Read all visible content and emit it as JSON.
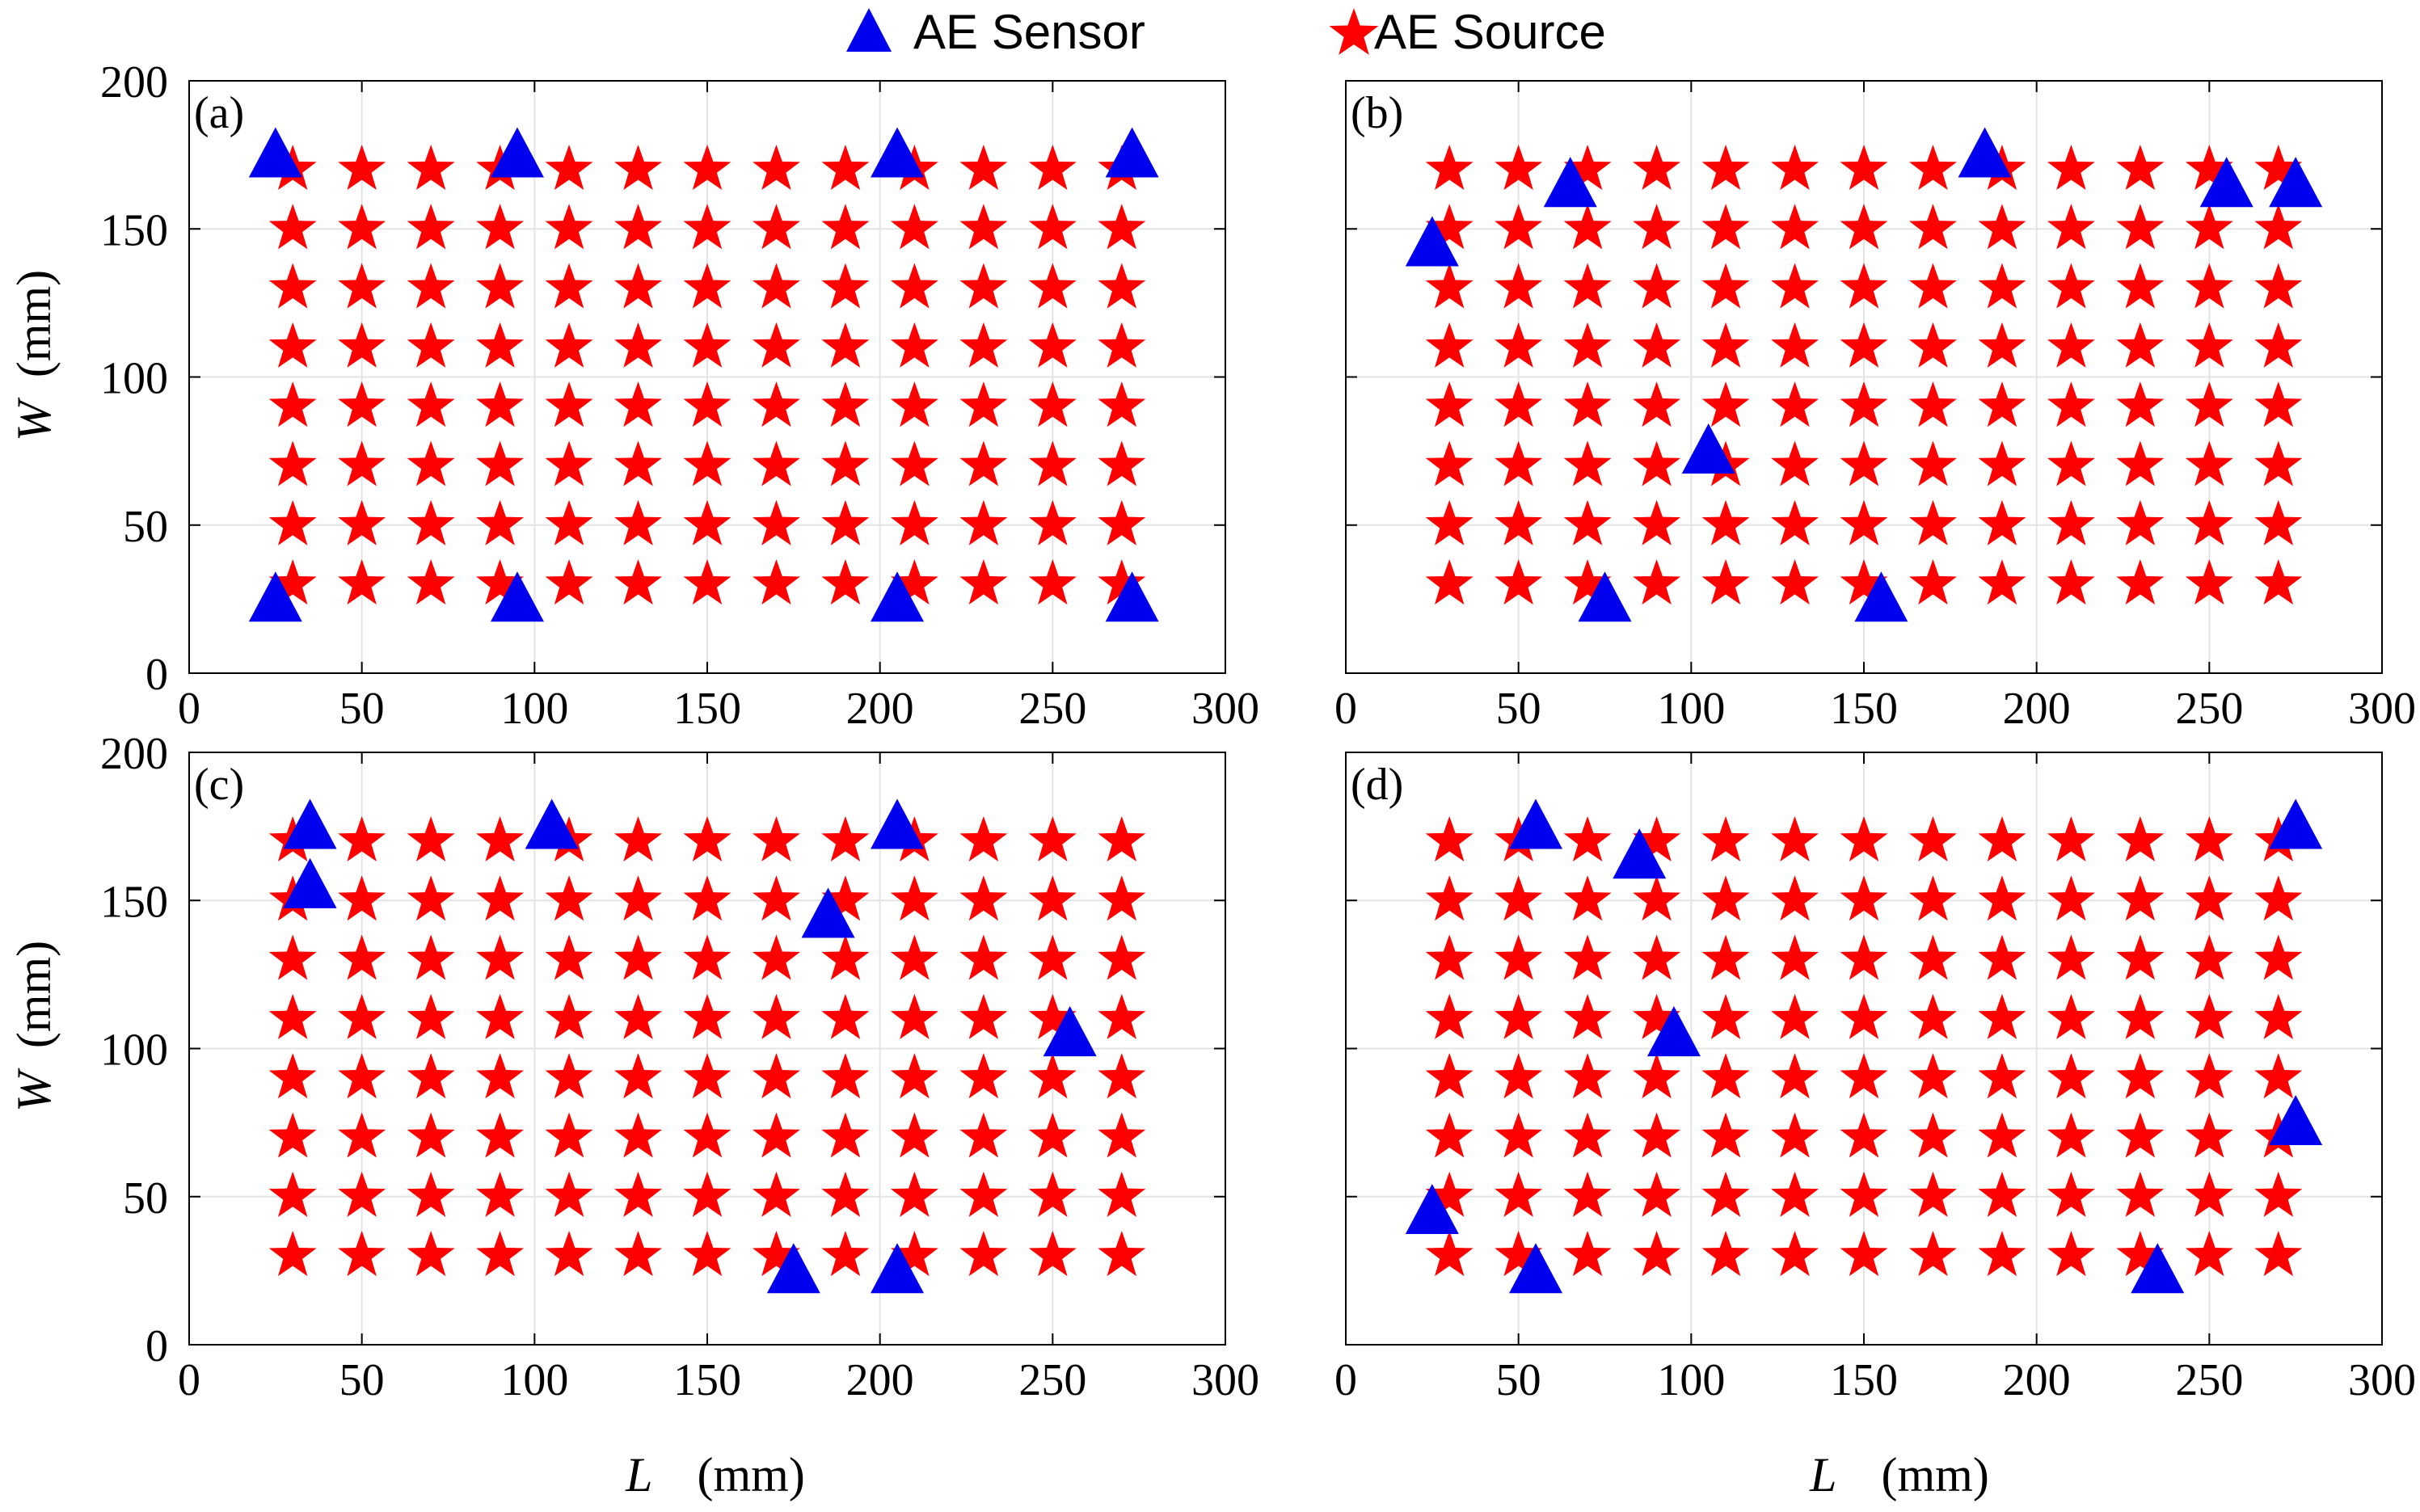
{
  "legend": {
    "sensor_label": "AE Sensor",
    "source_label": "AE Source"
  },
  "colors": {
    "sensor": "#0000ee",
    "source": "#ff0000",
    "grid": "#e4e4e4",
    "axes": "#000000"
  },
  "axis_text": {
    "x_var": "L",
    "x_unit": "(mm)",
    "y_var": "W",
    "y_unit": "(mm)"
  },
  "chart_data": [
    {
      "type": "scatter",
      "panel_label": "(a)",
      "xlim": [
        0,
        300
      ],
      "ylim": [
        0,
        200
      ],
      "x_ticks": [
        "0",
        "50",
        "100",
        "150",
        "200",
        "250",
        "300"
      ],
      "y_ticks": [
        "0",
        "50",
        "100",
        "150",
        "200"
      ],
      "grid": true,
      "source_x": [
        30,
        50,
        70,
        90,
        110,
        130,
        150,
        170,
        190,
        210,
        230,
        250,
        270
      ],
      "source_y": [
        30,
        50,
        70,
        90,
        110,
        130,
        150,
        170
      ],
      "sensors": [
        [
          25,
          175
        ],
        [
          95,
          175
        ],
        [
          205,
          175
        ],
        [
          273,
          175
        ],
        [
          25,
          25
        ],
        [
          95,
          25
        ],
        [
          205,
          25
        ],
        [
          273,
          25
        ]
      ]
    },
    {
      "type": "scatter",
      "panel_label": "(b)",
      "xlim": [
        0,
        300
      ],
      "ylim": [
        0,
        200
      ],
      "x_ticks": [
        "0",
        "50",
        "100",
        "150",
        "200",
        "250",
        "300"
      ],
      "y_ticks": [
        "0",
        "50",
        "100",
        "150",
        "200"
      ],
      "grid": true,
      "source_x": [
        30,
        50,
        70,
        90,
        110,
        130,
        150,
        170,
        190,
        210,
        230,
        250,
        270
      ],
      "source_y": [
        30,
        50,
        70,
        90,
        110,
        130,
        150,
        170
      ],
      "sensors": [
        [
          25,
          145
        ],
        [
          65,
          165
        ],
        [
          185,
          175
        ],
        [
          255,
          165
        ],
        [
          275,
          165
        ],
        [
          105,
          75
        ],
        [
          75,
          25
        ],
        [
          155,
          25
        ]
      ]
    },
    {
      "type": "scatter",
      "panel_label": "(c)",
      "xlim": [
        0,
        300
      ],
      "ylim": [
        0,
        200
      ],
      "x_ticks": [
        "0",
        "50",
        "100",
        "150",
        "200",
        "250",
        "300"
      ],
      "y_ticks": [
        "0",
        "50",
        "100",
        "150",
        "200"
      ],
      "grid": true,
      "source_x": [
        30,
        50,
        70,
        90,
        110,
        130,
        150,
        170,
        190,
        210,
        230,
        250,
        270
      ],
      "source_y": [
        30,
        50,
        70,
        90,
        110,
        130,
        150,
        170
      ],
      "sensors": [
        [
          35,
          175
        ],
        [
          35,
          155
        ],
        [
          105,
          175
        ],
        [
          205,
          175
        ],
        [
          185,
          145
        ],
        [
          255,
          105
        ],
        [
          175,
          25
        ],
        [
          205,
          25
        ]
      ]
    },
    {
      "type": "scatter",
      "panel_label": "(d)",
      "xlim": [
        0,
        300
      ],
      "ylim": [
        0,
        200
      ],
      "x_ticks": [
        "0",
        "50",
        "100",
        "150",
        "200",
        "250",
        "300"
      ],
      "y_ticks": [
        "0",
        "50",
        "100",
        "150",
        "200"
      ],
      "grid": true,
      "source_x": [
        30,
        50,
        70,
        90,
        110,
        130,
        150,
        170,
        190,
        210,
        230,
        250,
        270
      ],
      "source_y": [
        30,
        50,
        70,
        90,
        110,
        130,
        150,
        170
      ],
      "sensors": [
        [
          55,
          175
        ],
        [
          85,
          165
        ],
        [
          275,
          175
        ],
        [
          95,
          105
        ],
        [
          275,
          75
        ],
        [
          25,
          45
        ],
        [
          55,
          25
        ],
        [
          235,
          25
        ]
      ]
    }
  ]
}
